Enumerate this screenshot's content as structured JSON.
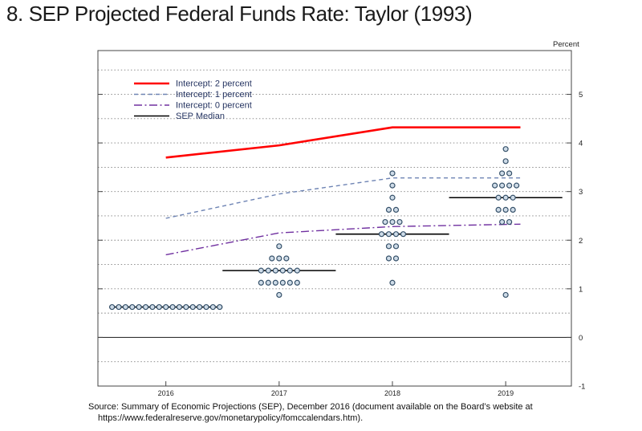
{
  "title": "8. SEP Projected Federal Funds Rate: Taylor (1993)",
  "source": {
    "line1": "Source:  Summary of Economic Projections (SEP), December 2016 (document available on the Board’s website at",
    "line2": "https://www.federalreserve.gov/monetarypolicy/fomccalendars.htm)."
  },
  "chart_data": {
    "type": "line",
    "title": "",
    "xlabel": "",
    "ylabel": "Percent",
    "xlim": [
      2015.4,
      2019.58
    ],
    "ylim": [
      -1,
      5.9
    ],
    "yticks": [
      5,
      4,
      3,
      2,
      1,
      0,
      -1
    ],
    "grid_values": [
      -0.5,
      0.5,
      1,
      1.5,
      2,
      2.5,
      3,
      3.5,
      4,
      4.5,
      5,
      5.5
    ],
    "zero_line": 0,
    "x": [
      2016,
      2017,
      2018,
      2019
    ],
    "xticklabels": [
      "2016",
      "2017",
      "2018",
      "2019"
    ],
    "line_x": [
      2016,
      2017,
      2018,
      2019.13
    ],
    "series": [
      {
        "name": "Intercept: 2 percent",
        "color": "#ff0000",
        "dash": "solid",
        "width": 2.6,
        "values": [
          3.7,
          3.95,
          4.32,
          4.32
        ]
      },
      {
        "name": "Intercept: 1 percent",
        "color": "#6e84b4",
        "dash": "dashed",
        "width": 1.4,
        "values": [
          2.45,
          2.95,
          3.28,
          3.28
        ]
      },
      {
        "name": "Intercept: 0 percent",
        "color": "#7030a0",
        "dash": "dashdot",
        "width": 1.4,
        "values": [
          1.7,
          2.15,
          2.28,
          2.33
        ]
      }
    ],
    "median": {
      "name": "SEP Median",
      "color": "#000000",
      "width": 1.6,
      "halfspan": 0.5,
      "values": [
        0.625,
        1.375,
        2.125,
        2.875
      ]
    },
    "dots": {
      "stroke": "#355069",
      "fill": "#cfdce8",
      "radius": 3,
      "groups": [
        {
          "x": 2016,
          "levels": [
            {
              "y": 0.625,
              "n": 17
            }
          ]
        },
        {
          "x": 2017,
          "levels": [
            {
              "y": 0.875,
              "n": 1
            },
            {
              "y": 1.125,
              "n": 6
            },
            {
              "y": 1.375,
              "n": 6
            },
            {
              "y": 1.625,
              "n": 3
            },
            {
              "y": 1.875,
              "n": 1
            }
          ]
        },
        {
          "x": 2018,
          "levels": [
            {
              "y": 1.125,
              "n": 1
            },
            {
              "y": 1.625,
              "n": 2
            },
            {
              "y": 1.875,
              "n": 2
            },
            {
              "y": 2.125,
              "n": 4
            },
            {
              "y": 2.375,
              "n": 3
            },
            {
              "y": 2.625,
              "n": 2
            },
            {
              "y": 2.875,
              "n": 1
            },
            {
              "y": 3.125,
              "n": 1
            },
            {
              "y": 3.375,
              "n": 1
            }
          ]
        },
        {
          "x": 2019,
          "levels": [
            {
              "y": 0.875,
              "n": 1
            },
            {
              "y": 2.375,
              "n": 2
            },
            {
              "y": 2.625,
              "n": 3
            },
            {
              "y": 2.875,
              "n": 3
            },
            {
              "y": 3.125,
              "n": 4
            },
            {
              "y": 3.375,
              "n": 2
            },
            {
              "y": 3.625,
              "n": 1
            },
            {
              "y": 3.875,
              "n": 1
            }
          ]
        }
      ]
    },
    "legend": {
      "position": "top-left",
      "text_color": "#253461",
      "entries": [
        {
          "label": "Intercept: 2 percent",
          "color": "#ff0000",
          "dash": "solid",
          "width": 2.6
        },
        {
          "label": "Intercept: 1 percent",
          "color": "#6e84b4",
          "dash": "dashed",
          "width": 1.4
        },
        {
          "label": "Intercept: 0 percent",
          "color": "#7030a0",
          "dash": "dashdot",
          "width": 1.4
        },
        {
          "label": "SEP Median",
          "color": "#000000",
          "dash": "solid",
          "width": 1.6
        }
      ]
    }
  }
}
